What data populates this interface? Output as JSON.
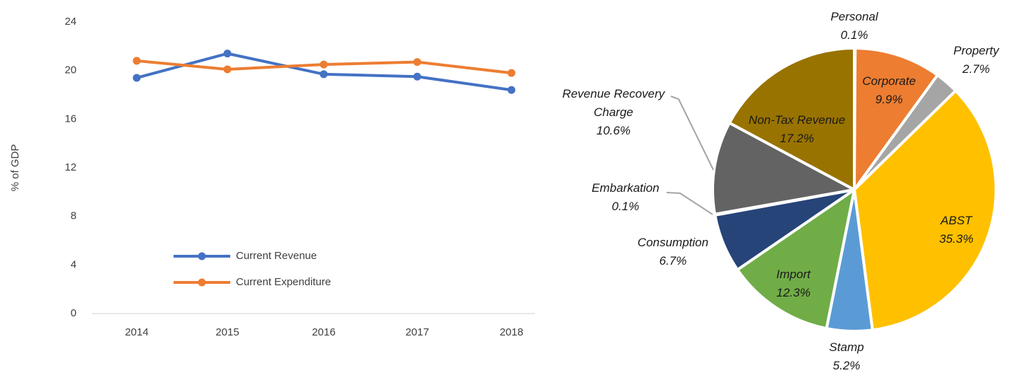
{
  "chart_data": [
    {
      "type": "line",
      "y_label": "% of GDP",
      "categories": [
        "2014",
        "2015",
        "2016",
        "2017",
        "2018"
      ],
      "ylim": [
        0,
        24
      ],
      "yticks": [
        0,
        4,
        8,
        12,
        16,
        20,
        24
      ],
      "grid": false,
      "legend": "lower left",
      "series": [
        {
          "name": "Current Revenue",
          "color": "#4472c4",
          "values": [
            19.4,
            21.4,
            19.7,
            19.5,
            18.4
          ]
        },
        {
          "name": "Current Expenditure",
          "color": "#ed7d31",
          "values": [
            20.8,
            20.1,
            20.5,
            20.7,
            19.8
          ]
        }
      ]
    },
    {
      "type": "pie",
      "categories": [
        "Personal",
        "Corporate",
        "Property",
        "ABST",
        "Stamp",
        "Import",
        "Consumption",
        "Embarkation",
        "Revenue Recovery Charge",
        "Non-Tax Revenue"
      ],
      "values": [
        0.1,
        9.9,
        2.7,
        35.3,
        5.2,
        12.3,
        6.7,
        0.1,
        10.6,
        17.2
      ],
      "value_labels": [
        "0.1%",
        "9.9%",
        "2.7%",
        "35.3%",
        "5.2%",
        "12.3%",
        "6.7%",
        "0.1%",
        "10.6%",
        "17.2%"
      ],
      "colors": [
        "#4472c4",
        "#ed7d31",
        "#a5a5a5",
        "#ffc000",
        "#5b9bd5",
        "#70ad47",
        "#264478",
        "#9e480e",
        "#636363",
        "#997300"
      ]
    }
  ]
}
